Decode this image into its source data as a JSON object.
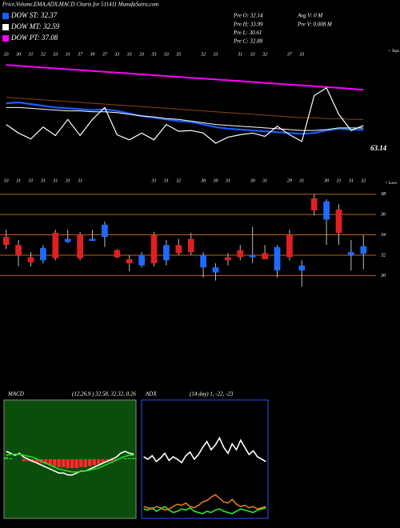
{
  "header": {
    "title": "Price,Volume,EMA,ADX,MACD Charts for 511411 MunafaSutra.com",
    "stats_left": [
      "Pre O: 32.14",
      "Pre H: 33.99",
      "Pre L: 30.61",
      "Pre C: 32.88"
    ],
    "stats_right": [
      "Avg V: 0 M",
      "Pre V: 0.008 M"
    ]
  },
  "chart_data": [
    {
      "type": "line",
      "ylim": [
        26,
        42
      ],
      "annotations": [
        "63.14",
        "< Tops",
        "< Lows"
      ],
      "top_labels": [
        "33",
        "30",
        "31",
        "32",
        "33",
        "31",
        "37",
        "30",
        "37",
        "33",
        "33",
        "33",
        "33",
        "33",
        "35",
        null,
        "32",
        "33",
        null,
        "31",
        "33",
        "32",
        null,
        "37",
        "33",
        null,
        null,
        null,
        null,
        null
      ],
      "low_labels": [
        "33",
        "31",
        "31",
        "31",
        "31",
        "31",
        "31",
        null,
        null,
        null,
        null,
        null,
        "31",
        "31",
        "32",
        null,
        "30",
        "30",
        "31",
        null,
        "30",
        "31",
        null,
        "29",
        "31",
        null,
        "30",
        "31",
        "31",
        "32"
      ],
      "price_color": "#ffffff",
      "series": [
        {
          "name": "DOW ST: 32.37",
          "color": "#1e5bff",
          "values": [
            35.5,
            35.6,
            35.4,
            35.2,
            35.0,
            34.9,
            34.8,
            34.7,
            34.8,
            34.6,
            34.3,
            34.0,
            33.8,
            33.6,
            33.4,
            33.3,
            33.0,
            32.7,
            32.5,
            32.4,
            32.3,
            32.2,
            32.1,
            32.0,
            31.9,
            32.0,
            32.3,
            32.5,
            32.4,
            32.37
          ]
        },
        {
          "name": "DOW MT: 32.59",
          "color": "#ffffff",
          "values": [
            35.0,
            35.0,
            34.9,
            34.8,
            34.7,
            34.6,
            34.6,
            34.5,
            34.5,
            34.4,
            34.2,
            34.0,
            33.9,
            33.7,
            33.6,
            33.4,
            33.2,
            33.0,
            32.9,
            32.8,
            32.7,
            32.6,
            32.5,
            32.4,
            32.3,
            32.3,
            32.4,
            32.6,
            32.6,
            32.59
          ]
        },
        {
          "name": "DOW PT: 37.08",
          "color": "#ff00ff",
          "values": [
            40.0,
            39.9,
            39.8,
            39.7,
            39.6,
            39.5,
            39.4,
            39.3,
            39.2,
            39.1,
            39.0,
            38.9,
            38.8,
            38.7,
            38.6,
            38.5,
            38.4,
            38.3,
            38.2,
            38.1,
            38.0,
            37.9,
            37.8,
            37.7,
            37.6,
            37.5,
            37.4,
            37.3,
            37.2,
            37.08
          ]
        },
        {
          "color": "#8b4513",
          "values": [
            36.2,
            36.1,
            36.0,
            35.9,
            35.8,
            35.7,
            35.6,
            35.5,
            35.4,
            35.3,
            35.2,
            35.1,
            35.0,
            34.9,
            34.8,
            34.7,
            34.6,
            34.5,
            34.4,
            34.3,
            34.2,
            34.1,
            34.0,
            33.9,
            33.8,
            33.8,
            33.7,
            33.7,
            33.6,
            33.6
          ]
        }
      ]
    },
    {
      "type": "candlestick",
      "ylim": [
        27.2,
        39
      ],
      "yticks": [
        30,
        32,
        34,
        36,
        38
      ],
      "up_color": "#1e6bff",
      "down_color": "#e02020",
      "grid_color": "#b8641e",
      "open": [
        33.8,
        33.0,
        31.8,
        31.5,
        34.2,
        33.3,
        34.0,
        33.4,
        33.8,
        32.5,
        31.6,
        31.0,
        34.0,
        31.5,
        33.0,
        33.6,
        30.8,
        30.3,
        31.8,
        32.5,
        31.8,
        32.2,
        30.5,
        34.0,
        30.5,
        37.6,
        35.5,
        36.5,
        32.0,
        32.14
      ],
      "high": [
        34.5,
        33.5,
        32.3,
        33.0,
        34.5,
        34.5,
        34.3,
        34.5,
        35.3,
        32.6,
        32.0,
        32.3,
        34.3,
        33.5,
        33.6,
        34.2,
        32.3,
        31.2,
        32.2,
        33.0,
        34.8,
        33.0,
        33.0,
        34.5,
        31.5,
        38.0,
        37.5,
        37.0,
        33.5,
        33.99
      ],
      "low": [
        32.6,
        30.9,
        30.9,
        31.2,
        31.5,
        33.2,
        31.5,
        33.4,
        32.8,
        31.7,
        30.4,
        30.8,
        30.9,
        31.0,
        32.0,
        32.0,
        29.8,
        29.5,
        31.0,
        31.5,
        31.2,
        31.6,
        29.8,
        31.5,
        28.9,
        35.9,
        33.0,
        33.0,
        30.5,
        30.61
      ],
      "close": [
        33.0,
        32.0,
        31.3,
        32.7,
        31.7,
        33.6,
        31.7,
        33.6,
        35.0,
        31.8,
        31.2,
        32.0,
        31.2,
        33.0,
        32.2,
        32.3,
        32.0,
        30.8,
        31.5,
        31.8,
        32.0,
        31.6,
        32.8,
        31.8,
        31.0,
        36.4,
        37.3,
        34.2,
        32.3,
        32.88
      ]
    },
    {
      "type": "macd",
      "title": "MACD",
      "subtitle": "(12,26,9 ) 32.58, 32.32, 0.26",
      "ylim": [
        -3,
        3
      ],
      "background": "#0b4d0b",
      "series": [
        {
          "color": "#ffffff",
          "values": [
            0.4,
            0.3,
            0.2,
            0.3,
            0.1,
            0.0,
            -0.1,
            -0.2,
            -0.3,
            -0.4,
            -0.5,
            -0.6,
            -0.7,
            -0.7,
            -0.8,
            -0.8,
            -0.7,
            -0.6,
            -0.6,
            -0.5,
            -0.4,
            -0.3,
            -0.2,
            -0.1,
            0.0,
            0.1,
            0.3,
            0.4,
            0.3,
            0.26
          ]
        },
        {
          "color": "#22dd22",
          "values": [
            0.2,
            0.25,
            0.25,
            0.25,
            0.2,
            0.15,
            0.1,
            0.0,
            -0.1,
            -0.2,
            -0.3,
            -0.4,
            -0.5,
            -0.55,
            -0.6,
            -0.65,
            -0.65,
            -0.62,
            -0.6,
            -0.55,
            -0.5,
            -0.45,
            -0.35,
            -0.25,
            -0.15,
            -0.05,
            0.05,
            0.15,
            0.2,
            0.2
          ]
        }
      ],
      "histogram": [
        0.1,
        0.05,
        0,
        0,
        -0.1,
        -0.1,
        -0.15,
        -0.2,
        -0.2,
        -0.25,
        -0.3,
        -0.35,
        -0.4,
        -0.4,
        -0.45,
        -0.45,
        -0.45,
        -0.4,
        -0.4,
        -0.35,
        -0.3,
        -0.25,
        -0.2,
        -0.15,
        -0.1,
        -0.05,
        0,
        0.05,
        0.05,
        0.06
      ],
      "histogram_colors": [
        "#22cc22",
        "#ff2a2a"
      ]
    },
    {
      "type": "adx",
      "title": "ADX",
      "subtitle": "(14 day) 1, -22, -23",
      "ylim": [
        0,
        100
      ],
      "background": "#000000",
      "border": "#2f4fff",
      "series": [
        {
          "color": "#ffffff",
          "values": [
            52,
            50,
            53,
            48,
            51,
            55,
            49,
            52,
            50,
            47,
            53,
            56,
            50,
            54,
            60,
            65,
            58,
            62,
            68,
            60,
            55,
            63,
            58,
            66,
            60,
            54,
            57,
            52,
            50,
            48
          ]
        },
        {
          "color": "#22ee22",
          "values": [
            8,
            7,
            9,
            6,
            8,
            10,
            7,
            5,
            6,
            8,
            7,
            9,
            6,
            5,
            4,
            6,
            5,
            7,
            8,
            6,
            5,
            4,
            6,
            8,
            7,
            6,
            5,
            7,
            8,
            9
          ]
        },
        {
          "color": "#e07a20",
          "values": [
            10,
            9,
            8,
            10,
            9,
            7,
            8,
            10,
            12,
            11,
            13,
            10,
            9,
            11,
            14,
            15,
            18,
            20,
            17,
            14,
            13,
            16,
            12,
            10,
            11,
            9,
            10,
            8,
            9,
            10
          ]
        }
      ]
    }
  ]
}
